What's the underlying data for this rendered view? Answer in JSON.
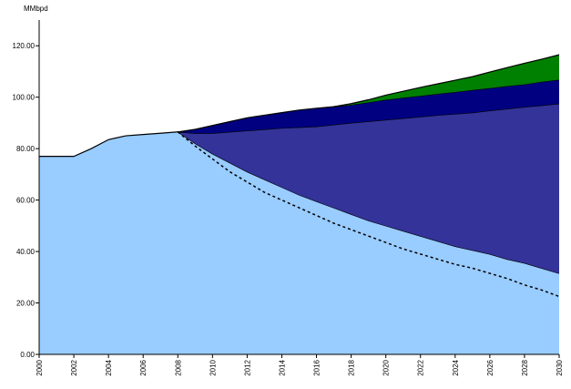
{
  "chart_data": {
    "type": "stacked_area",
    "y_label": "MMbpd",
    "x": [
      2000,
      2001,
      2002,
      2003,
      2004,
      2005,
      2006,
      2007,
      2008,
      2009,
      2010,
      2011,
      2012,
      2013,
      2014,
      2015,
      2016,
      2017,
      2018,
      2019,
      2020,
      2021,
      2022,
      2023,
      2024,
      2025,
      2026,
      2027,
      2028,
      2029,
      2030
    ],
    "xlim": [
      2000,
      2030
    ],
    "xticks": [
      2000,
      2002,
      2004,
      2006,
      2008,
      2010,
      2012,
      2014,
      2016,
      2018,
      2020,
      2022,
      2024,
      2026,
      2028,
      2030
    ],
    "ylim": [
      0,
      130
    ],
    "yticks": [
      {
        "value": 0,
        "label": "0.00"
      },
      {
        "value": 20,
        "label": "20.00"
      },
      {
        "value": 40,
        "label": "40.00"
      },
      {
        "value": 60,
        "label": "60.00"
      },
      {
        "value": 80,
        "label": "80.00"
      },
      {
        "value": 100,
        "label": "100.00"
      },
      {
        "value": 120,
        "label": "120.00"
      }
    ],
    "series": [
      {
        "kind": "area",
        "color": "#99ccff",
        "values": [
          77,
          77,
          77,
          80,
          83.5,
          85,
          85.5,
          86,
          86.5,
          82,
          78,
          74.5,
          71,
          68,
          65,
          62,
          59.5,
          57,
          54.5,
          52,
          50,
          48,
          46,
          44,
          42,
          40.5,
          39,
          37,
          35.5,
          33.5,
          31.5
        ]
      },
      {
        "kind": "area",
        "color": "#333399",
        "values": [
          null,
          null,
          null,
          null,
          null,
          null,
          null,
          null,
          0,
          4,
          8,
          12,
          16,
          19.5,
          23,
          26.3,
          29.1,
          32.3,
          35.5,
          38.6,
          41.2,
          43.8,
          46.4,
          49,
          51.5,
          53.5,
          55.8,
          58.5,
          60.7,
          63.3,
          66
        ]
      },
      {
        "kind": "area",
        "color": "#000080",
        "values": [
          null,
          null,
          null,
          null,
          null,
          null,
          null,
          null,
          0,
          1.5,
          3,
          4,
          5,
          5.5,
          6,
          6.7,
          7.1,
          7,
          7,
          7.4,
          7.8,
          8,
          8.1,
          8.3,
          8.5,
          8.8,
          8.7,
          8.8,
          8.8,
          9.2,
          9.3
        ]
      },
      {
        "kind": "area",
        "color": "#008000",
        "values": [
          null,
          null,
          null,
          null,
          null,
          null,
          null,
          null,
          null,
          null,
          null,
          null,
          null,
          null,
          null,
          null,
          null,
          0,
          0.5,
          1,
          1.8,
          2.5,
          3.3,
          3.9,
          4.6,
          5.2,
          6.3,
          7.2,
          8.2,
          8.8,
          9.7
        ]
      },
      {
        "kind": "line",
        "dashed": true,
        "color": "#000000",
        "values": [
          null,
          null,
          null,
          null,
          null,
          null,
          null,
          null,
          86.5,
          81,
          76,
          71,
          67,
          63,
          60,
          57,
          54,
          51,
          48.5,
          46,
          43.5,
          41,
          39,
          37,
          35,
          33.5,
          31.5,
          29.5,
          27,
          25,
          22.5
        ]
      }
    ]
  }
}
